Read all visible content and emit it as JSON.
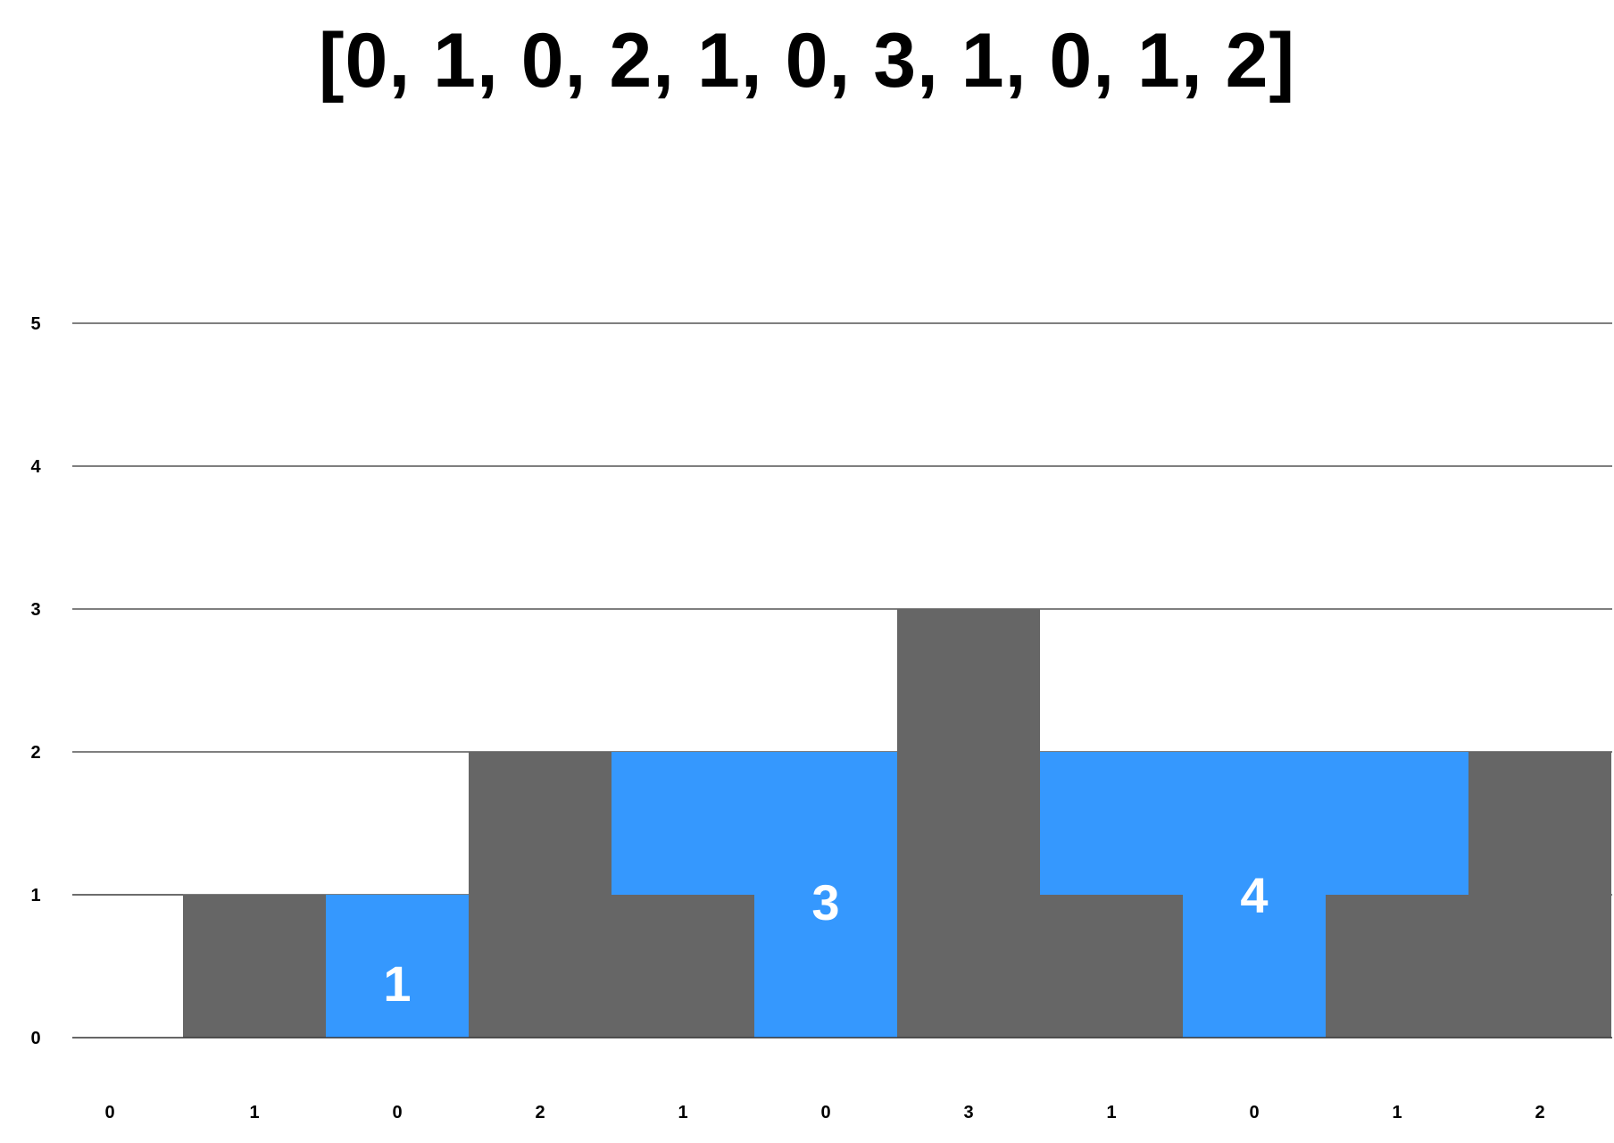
{
  "chart_data": {
    "type": "bar",
    "title": "[0, 1, 0, 2, 1, 0, 3, 1, 0, 1, 2]",
    "xlabel": "",
    "ylabel": "",
    "categories": [
      "0",
      "1",
      "0",
      "2",
      "1",
      "0",
      "3",
      "1",
      "0",
      "1",
      "2"
    ],
    "series": [
      {
        "role": "elevation",
        "color": "#666666",
        "values": [
          0,
          1,
          0,
          2,
          1,
          0,
          3,
          1,
          0,
          1,
          2
        ]
      },
      {
        "role": "trapped-water",
        "color": "#3598fe",
        "values": [
          0,
          0,
          1,
          0,
          1,
          2,
          0,
          1,
          2,
          1,
          0
        ]
      }
    ],
    "annotations": [
      {
        "text": "1",
        "category_index": 2
      },
      {
        "text": "3",
        "category_index": 5
      },
      {
        "text": "4",
        "category_index": 8
      }
    ],
    "ylim": [
      0,
      5
    ],
    "yticks": [
      0,
      1,
      2,
      3,
      4,
      5
    ],
    "grid": true,
    "legend": "none",
    "colors": {
      "bar": "#666666",
      "water": "#3598fe",
      "gridline": "#333333",
      "text": "#000000"
    }
  }
}
